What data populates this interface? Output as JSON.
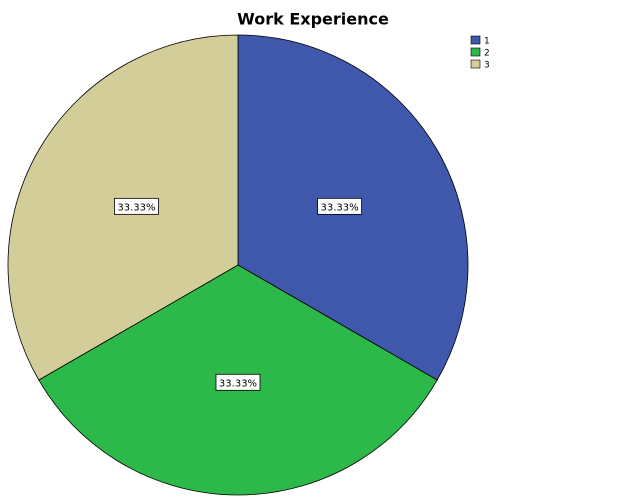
{
  "chart_data": {
    "type": "pie",
    "title": "Work Experience",
    "categories": [
      "1",
      "2",
      "3"
    ],
    "values": [
      33.33,
      33.33,
      33.33
    ],
    "value_labels": [
      "33.33%",
      "33.33%",
      "33.33%"
    ],
    "colors": [
      "#3f58ab",
      "#2db84a",
      "#d3ce99"
    ],
    "legend": "top-right"
  }
}
